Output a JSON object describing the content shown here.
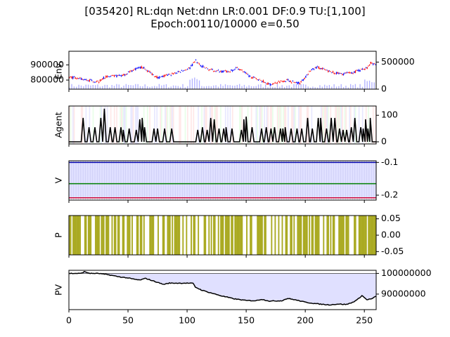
{
  "title_line1": "[035420] RL:dqn Net:dnn LR:0.001 DF:0.9 TU:[1,100]",
  "title_line2": "Epoch:00110/10000 e=0.50",
  "colors": {
    "candle_up": "#ff0000",
    "candle_down": "#0000ff",
    "volume": "#b0b0ff",
    "exploration_bg": "#ffe0e0",
    "value_fill": "#e0e0ff",
    "v_top": "#0000aa",
    "v_mid": "#008000",
    "v_bottom": "#cc0033",
    "policy": "#aaaa22",
    "pv_fill": "#e0e0ff"
  },
  "chart_data": [
    {
      "panel": "Env.",
      "type": "line",
      "ylabel": "Env.",
      "xlim": [
        0,
        260
      ],
      "left_ticks": [
        "800000",
        "900000"
      ],
      "left_tick_values": [
        800000,
        900000
      ],
      "right_ticks": [
        "0",
        "500000"
      ],
      "right_tick_values": [
        0,
        500000
      ],
      "ylim": [
        740000,
        990000
      ],
      "price_keypoints": [
        [
          0,
          820000
        ],
        [
          15,
          800000
        ],
        [
          25,
          790000
        ],
        [
          30,
          820000
        ],
        [
          45,
          830000
        ],
        [
          55,
          870000
        ],
        [
          62,
          885000
        ],
        [
          68,
          850000
        ],
        [
          75,
          815000
        ],
        [
          85,
          835000
        ],
        [
          95,
          860000
        ],
        [
          102,
          880000
        ],
        [
          107,
          930000
        ],
        [
          110,
          900000
        ],
        [
          118,
          870000
        ],
        [
          125,
          860000
        ],
        [
          135,
          855000
        ],
        [
          142,
          880000
        ],
        [
          148,
          855000
        ],
        [
          152,
          825000
        ],
        [
          160,
          805000
        ],
        [
          170,
          770000
        ],
        [
          178,
          790000
        ],
        [
          185,
          800000
        ],
        [
          190,
          785000
        ],
        [
          195,
          780000
        ],
        [
          200,
          820000
        ],
        [
          205,
          870000
        ],
        [
          210,
          885000
        ],
        [
          220,
          855000
        ],
        [
          230,
          840000
        ],
        [
          240,
          850000
        ],
        [
          248,
          870000
        ],
        [
          252,
          880000
        ],
        [
          255,
          915000
        ],
        [
          260,
          900000
        ]
      ],
      "volume_ylim": [
        0,
        700000
      ]
    },
    {
      "panel": "Agent",
      "type": "line",
      "ylabel": "Agent",
      "xlim": [
        0,
        260
      ],
      "ylim": [
        -8,
        135
      ],
      "ticks": [
        "0",
        "100"
      ],
      "tick_values": [
        0,
        100
      ],
      "peaks": [
        [
          12,
          90
        ],
        [
          17,
          55
        ],
        [
          22,
          55
        ],
        [
          27,
          90
        ],
        [
          30,
          125
        ],
        [
          35,
          55
        ],
        [
          39,
          55
        ],
        [
          44,
          55
        ],
        [
          46,
          45
        ],
        [
          51,
          50
        ],
        [
          57,
          45
        ],
        [
          60,
          85
        ],
        [
          62,
          90
        ],
        [
          64,
          55
        ],
        [
          72,
          50
        ],
        [
          75,
          50
        ],
        [
          81,
          50
        ],
        [
          87,
          50
        ],
        [
          109,
          45
        ],
        [
          113,
          55
        ],
        [
          117,
          45
        ],
        [
          120,
          90
        ],
        [
          123,
          85
        ],
        [
          127,
          50
        ],
        [
          131,
          50
        ],
        [
          133,
          55
        ],
        [
          138,
          50
        ],
        [
          146,
          45
        ],
        [
          148,
          85
        ],
        [
          150,
          95
        ],
        [
          155,
          55
        ],
        [
          163,
          50
        ],
        [
          167,
          55
        ],
        [
          171,
          50
        ],
        [
          174,
          55
        ],
        [
          179,
          50
        ],
        [
          181,
          50
        ],
        [
          183,
          55
        ],
        [
          188,
          50
        ],
        [
          193,
          50
        ],
        [
          197,
          50
        ],
        [
          202,
          90
        ],
        [
          206,
          50
        ],
        [
          211,
          90
        ],
        [
          213,
          90
        ],
        [
          218,
          50
        ],
        [
          222,
          90
        ],
        [
          225,
          90
        ],
        [
          229,
          50
        ],
        [
          232,
          45
        ],
        [
          235,
          45
        ],
        [
          239,
          55
        ],
        [
          242,
          90
        ],
        [
          247,
          55
        ],
        [
          249,
          50
        ],
        [
          251,
          85
        ],
        [
          253,
          50
        ],
        [
          255,
          90
        ]
      ]
    },
    {
      "panel": "V",
      "type": "line",
      "ylabel": "V",
      "xlim": [
        0,
        260
      ],
      "ylim": [
        -0.215,
        -0.095
      ],
      "ticks": [
        "-0.2",
        "-0.1"
      ],
      "tick_values": [
        -0.2,
        -0.1
      ],
      "series": [
        {
          "values": [
            -0.1
          ]
        },
        {
          "values": [
            -0.165
          ]
        },
        {
          "values": [
            -0.208
          ]
        }
      ]
    },
    {
      "panel": "P",
      "type": "bar",
      "ylabel": "P",
      "xlim": [
        0,
        260
      ],
      "ylim": [
        -0.06,
        0.06
      ],
      "ticks": [
        "-0.05",
        "0.00",
        "0.05"
      ],
      "tick_values": [
        -0.05,
        0.0,
        0.05
      ]
    },
    {
      "panel": "PV",
      "type": "area",
      "ylabel": "PV",
      "xlim": [
        0,
        260
      ],
      "xlabel": "",
      "x_ticks": [
        "0",
        "50",
        "100",
        "150",
        "200",
        "250"
      ],
      "x_tick_values": [
        0,
        50,
        100,
        150,
        200,
        250
      ],
      "ylim": [
        82500000,
        101500000
      ],
      "ticks": [
        "90000000",
        "100000000"
      ],
      "tick_values": [
        90000000,
        100000000
      ],
      "baseline": 100000000,
      "pv_keypoints": [
        [
          0,
          100000000
        ],
        [
          10,
          100000000
        ],
        [
          13,
          100800000
        ],
        [
          18,
          100000000
        ],
        [
          25,
          100000000
        ],
        [
          30,
          99600000
        ],
        [
          35,
          99200000
        ],
        [
          42,
          98400000
        ],
        [
          50,
          97800000
        ],
        [
          55,
          97200000
        ],
        [
          60,
          96800000
        ],
        [
          65,
          97600000
        ],
        [
          70,
          96600000
        ],
        [
          75,
          95700000
        ],
        [
          80,
          94700000
        ],
        [
          85,
          95300000
        ],
        [
          90,
          95300000
        ],
        [
          100,
          95300000
        ],
        [
          105,
          95200000
        ],
        [
          107,
          93400000
        ],
        [
          112,
          92000000
        ],
        [
          117,
          91100000
        ],
        [
          122,
          90300000
        ],
        [
          128,
          89300000
        ],
        [
          140,
          87700000
        ],
        [
          150,
          86900000
        ],
        [
          158,
          86800000
        ],
        [
          163,
          87500000
        ],
        [
          170,
          86600000
        ],
        [
          180,
          86800000
        ],
        [
          185,
          87900000
        ],
        [
          190,
          87400000
        ],
        [
          195,
          86800000
        ],
        [
          200,
          86100000
        ],
        [
          210,
          85300000
        ],
        [
          220,
          84800000
        ],
        [
          228,
          85200000
        ],
        [
          235,
          85000000
        ],
        [
          240,
          86000000
        ],
        [
          244,
          87300000
        ],
        [
          248,
          89300000
        ],
        [
          252,
          87300000
        ],
        [
          256,
          87700000
        ],
        [
          260,
          88900000
        ]
      ]
    }
  ]
}
